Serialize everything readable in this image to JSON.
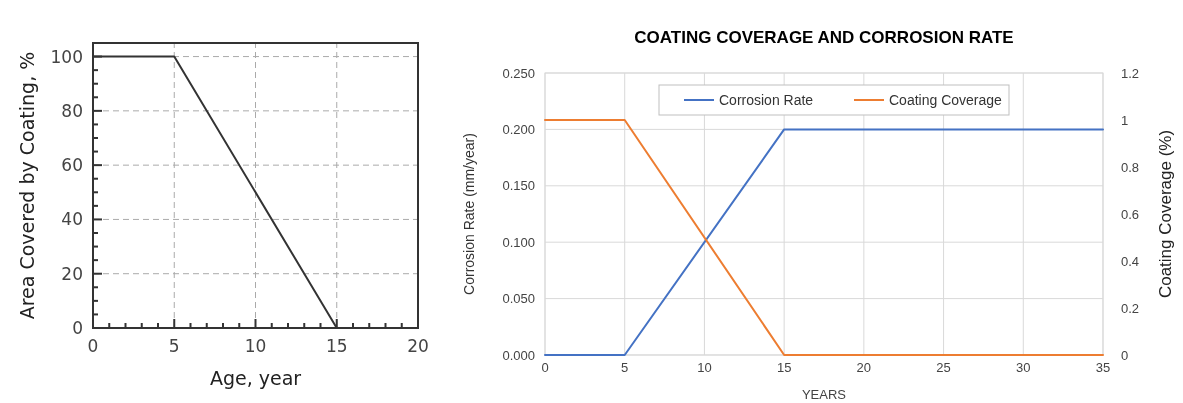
{
  "chart_data": [
    {
      "type": "line",
      "xlabel": "Age, year",
      "ylabel": "Area Covered by Coating, %",
      "xlim": [
        0,
        20
      ],
      "ylim": [
        0,
        105
      ],
      "xticks": [
        0,
        {
          "value": 1,
          "label": null
        },
        {
          "value": 2,
          "label": null
        },
        {
          "value": 3,
          "label": null
        },
        {
          "value": 4,
          "label": null
        },
        5,
        {
          "value": 6,
          "label": null
        },
        {
          "value": 7,
          "label": null
        },
        {
          "value": 8,
          "label": null
        },
        {
          "value": 9,
          "label": null
        },
        10,
        {
          "value": 11,
          "label": null
        },
        {
          "value": 12,
          "label": null
        },
        {
          "value": 13,
          "label": null
        },
        {
          "value": 14,
          "label": null
        },
        15,
        {
          "value": 16,
          "label": null
        },
        {
          "value": 17,
          "label": null
        },
        {
          "value": 18,
          "label": null
        },
        {
          "value": 19,
          "label": null
        },
        20
      ],
      "yticks": [
        0,
        {
          "value": 5,
          "label": null
        },
        {
          "value": 10,
          "label": null
        },
        {
          "value": 15,
          "label": null
        },
        20,
        {
          "value": 25,
          "label": null
        },
        {
          "value": 30,
          "label": null
        },
        {
          "value": 35,
          "label": null
        },
        40,
        {
          "value": 45,
          "label": null
        },
        {
          "value": 50,
          "label": null
        },
        {
          "value": 55,
          "label": null
        },
        60,
        {
          "value": 65,
          "label": null
        },
        {
          "value": 70,
          "label": null
        },
        {
          "value": 75,
          "label": null
        },
        80,
        {
          "value": 85,
          "label": null
        },
        {
          "value": 90,
          "label": null
        },
        {
          "value": 95,
          "label": null
        },
        100
      ],
      "grid": true,
      "x": [
        0,
        5,
        15
      ],
      "series": [
        {
          "color": "#333333",
          "values": [
            100,
            100,
            0
          ]
        }
      ]
    },
    {
      "type": "line",
      "title": "COATING COVERAGE AND CORROSION RATE",
      "xlabel": "YEARS",
      "ylabel": "Corrosion Rate (mm/year)",
      "y2label": "Coating Coverage (%)",
      "xlim": [
        0,
        35
      ],
      "xticks": [
        0,
        5,
        10,
        15,
        20,
        25,
        30,
        35
      ],
      "ylim": [
        0,
        0.25
      ],
      "yticks": [
        {
          "value": 0,
          "label": "0.000"
        },
        {
          "value": 0.05,
          "label": "0.050"
        },
        {
          "value": 0.1,
          "label": "0.100"
        },
        {
          "value": 0.15,
          "label": "0.150"
        },
        {
          "value": 0.2,
          "label": "0.200"
        },
        {
          "value": 0.25,
          "label": "0.250"
        }
      ],
      "y2lim": [
        0,
        1.2
      ],
      "y2ticks": [
        0,
        0.2,
        0.4,
        0.6,
        0.8,
        1,
        1.2
      ],
      "grid": true,
      "legend": "top",
      "x": [
        0,
        5,
        15,
        35
      ],
      "series": [
        {
          "name": "Corrosion Rate",
          "color": "#4472c4",
          "values": [
            0,
            0,
            0.2,
            0.2
          ]
        },
        {
          "name": "Coating Coverage",
          "color": "#ed7d31",
          "axis": "y2",
          "values": [
            1,
            1,
            0,
            0
          ]
        }
      ]
    }
  ]
}
